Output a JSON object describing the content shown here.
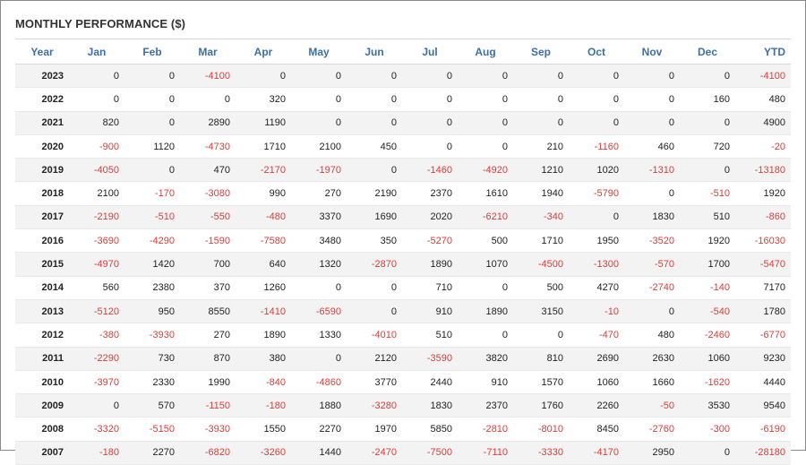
{
  "title": "MONTHLY PERFORMANCE ($)",
  "table": {
    "headers": [
      "Year",
      "Jan",
      "Feb",
      "Mar",
      "Apr",
      "May",
      "Jun",
      "Jul",
      "Aug",
      "Sep",
      "Oct",
      "Nov",
      "Dec",
      "YTD"
    ],
    "rows": [
      [
        "2023",
        "0",
        "0",
        "-4100",
        "0",
        "0",
        "0",
        "0",
        "0",
        "0",
        "0",
        "0",
        "0",
        "-4100"
      ],
      [
        "2022",
        "0",
        "0",
        "0",
        "320",
        "0",
        "0",
        "0",
        "0",
        "0",
        "0",
        "0",
        "160",
        "480"
      ],
      [
        "2021",
        "820",
        "0",
        "2890",
        "1190",
        "0",
        "0",
        "0",
        "0",
        "0",
        "0",
        "0",
        "0",
        "4900"
      ],
      [
        "2020",
        "-900",
        "1120",
        "-4730",
        "1710",
        "2100",
        "450",
        "0",
        "0",
        "210",
        "-1160",
        "460",
        "720",
        "-20"
      ],
      [
        "2019",
        "-4050",
        "0",
        "470",
        "-2170",
        "-1970",
        "0",
        "-1460",
        "-4920",
        "1210",
        "1020",
        "-1310",
        "0",
        "-13180"
      ],
      [
        "2018",
        "2100",
        "-170",
        "-3080",
        "990",
        "270",
        "2190",
        "2370",
        "1610",
        "1940",
        "-5790",
        "0",
        "-510",
        "1920"
      ],
      [
        "2017",
        "-2190",
        "-510",
        "-550",
        "-480",
        "3370",
        "1690",
        "2020",
        "-6210",
        "-340",
        "0",
        "1830",
        "510",
        "-860"
      ],
      [
        "2016",
        "-3690",
        "-4290",
        "-1590",
        "-7580",
        "3480",
        "350",
        "-5270",
        "500",
        "1710",
        "1950",
        "-3520",
        "1920",
        "-16030"
      ],
      [
        "2015",
        "-4970",
        "1420",
        "700",
        "640",
        "1320",
        "-2870",
        "1890",
        "1070",
        "-4500",
        "-1300",
        "-570",
        "1700",
        "-5470"
      ],
      [
        "2014",
        "560",
        "2380",
        "370",
        "1260",
        "0",
        "0",
        "710",
        "0",
        "500",
        "4270",
        "-2740",
        "-140",
        "7170"
      ],
      [
        "2013",
        "-5120",
        "950",
        "8550",
        "-1410",
        "-6590",
        "0",
        "910",
        "1890",
        "3150",
        "-10",
        "0",
        "-540",
        "1780"
      ],
      [
        "2012",
        "-380",
        "-3930",
        "270",
        "1890",
        "1330",
        "-4010",
        "510",
        "0",
        "0",
        "-470",
        "480",
        "-2460",
        "-6770"
      ],
      [
        "2011",
        "-2290",
        "730",
        "870",
        "380",
        "0",
        "2120",
        "-3590",
        "3820",
        "810",
        "2690",
        "2630",
        "1060",
        "9230"
      ],
      [
        "2010",
        "-3970",
        "2330",
        "1990",
        "-840",
        "-4860",
        "3770",
        "2440",
        "910",
        "1570",
        "1060",
        "1660",
        "-1620",
        "4440"
      ],
      [
        "2009",
        "0",
        "570",
        "-1150",
        "-180",
        "1880",
        "-3280",
        "1830",
        "2370",
        "1760",
        "2260",
        "-50",
        "3530",
        "9540"
      ],
      [
        "2008",
        "-3320",
        "-5150",
        "-3930",
        "1550",
        "2270",
        "1970",
        "5850",
        "-2810",
        "-8010",
        "8450",
        "-2760",
        "-300",
        "-6190"
      ],
      [
        "2007",
        "-180",
        "2270",
        "-6820",
        "-3260",
        "1440",
        "-2470",
        "-7500",
        "-7110",
        "-3330",
        "-4170",
        "2950",
        "0",
        "-28180"
      ]
    ]
  },
  "colors": {
    "header_text": "#3d6fa8",
    "negative": "#e53935",
    "positive": "#222222",
    "row_stripe": "#f3f3f3"
  }
}
